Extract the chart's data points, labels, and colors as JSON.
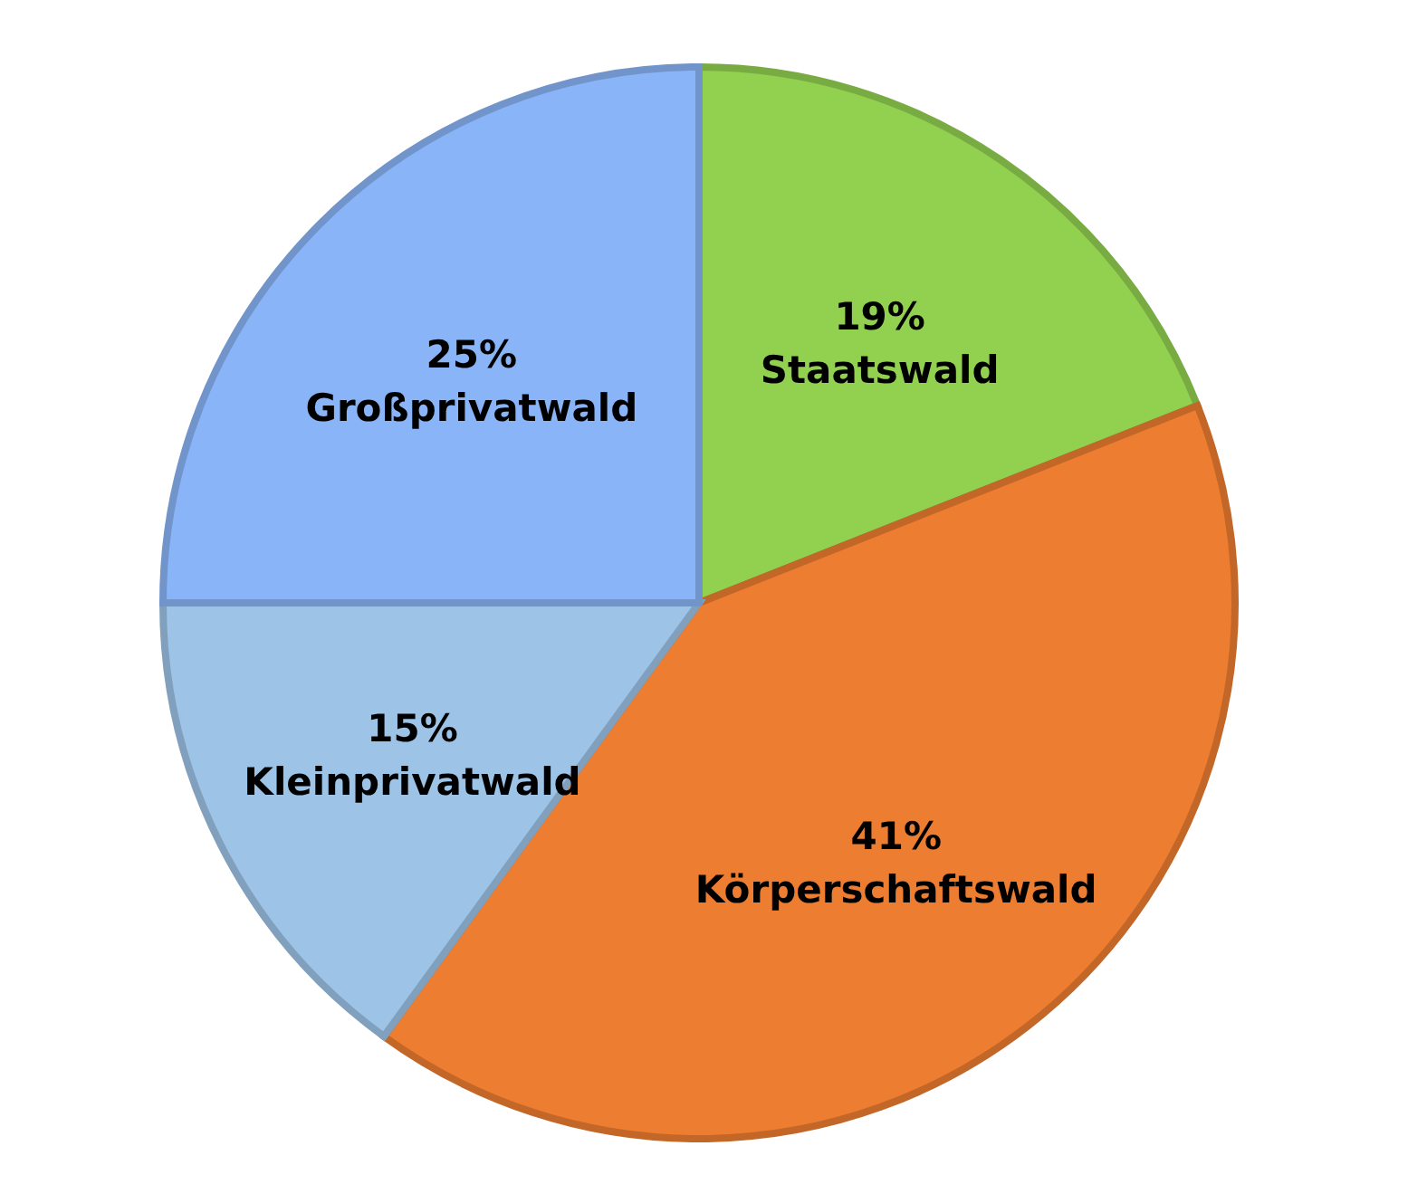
{
  "chart_data": {
    "type": "pie",
    "categories": [
      "Staatswald",
      "Körperschaftswald",
      "Kleinprivatwald",
      "Großprivatwald"
    ],
    "values": [
      19,
      41,
      15,
      25
    ],
    "colors": [
      "#92d050",
      "#ed7d31",
      "#9dc3e6",
      "#8ab4f8"
    ],
    "value_labels": [
      "19%",
      "41%",
      "15%",
      "25%"
    ],
    "legend": false
  }
}
